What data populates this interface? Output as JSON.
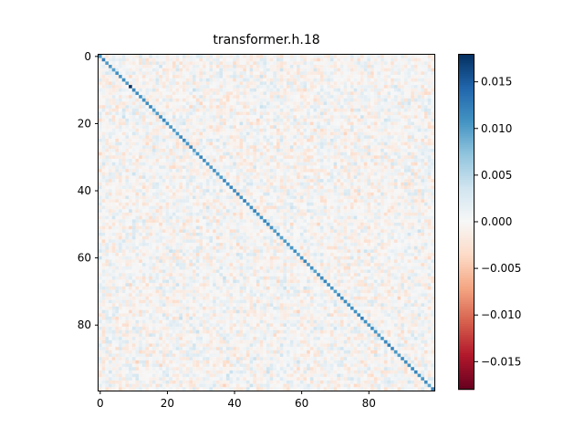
{
  "chart_data": {
    "type": "heatmap",
    "title": "transformer.h.18",
    "xlabel": "",
    "ylabel": "",
    "matrix_size": [
      100,
      100
    ],
    "x_ticks": [
      0,
      20,
      40,
      60,
      80
    ],
    "y_ticks": [
      0,
      20,
      40,
      60,
      80
    ],
    "colormap": "RdBu",
    "vmin": -0.018,
    "vmax": 0.018,
    "colorbar_ticks": [
      0.015,
      0.01,
      0.005,
      0.0,
      -0.005,
      -0.01,
      -0.015
    ],
    "colorbar_tick_labels": [
      "0.015",
      "0.010",
      "0.005",
      "0.000",
      "−0.005",
      "−0.010",
      "−0.015"
    ],
    "description_stats": {
      "off_diagonal_typical_range": [
        -0.006,
        0.006
      ],
      "diagonal_typical_value": 0.011,
      "diagonal_max_value": 0.018,
      "diagonal_max_index": 9
    }
  }
}
